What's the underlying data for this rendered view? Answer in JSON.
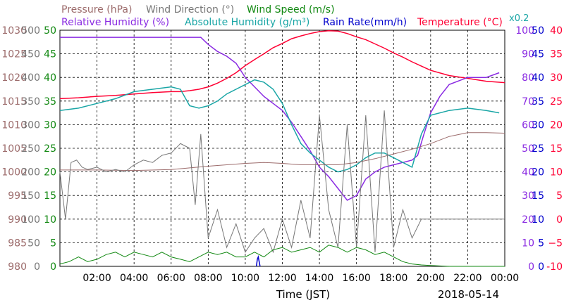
{
  "chart_data": {
    "type": "line",
    "date": "2018-05-14",
    "xlabel": "Time (JST)",
    "x_ticks": [
      "02:00",
      "04:00",
      "06:00",
      "08:00",
      "10:00",
      "12:00",
      "14:00",
      "16:00",
      "18:00",
      "20:00",
      "22:00",
      "00:00"
    ],
    "xlim_hours": [
      0,
      24
    ],
    "grid": true,
    "legend": [
      {
        "label": "Pressure (hPa)",
        "color": "#9c6b6b"
      },
      {
        "label": "Wind Direction (°)",
        "color": "#777777"
      },
      {
        "label": "Wind Speed (m/s)",
        "color": "#118811"
      },
      {
        "label": "Relative Humidity (%)",
        "color": "#8a2be2"
      },
      {
        "label": "Absolute Humidity (g/m³)",
        "color": "#1aa6a6"
      },
      {
        "label": "Rain Rate(mm/h)",
        "color": "#0000cc"
      },
      {
        "label": "Temperature (°C)",
        "color": "#ff0033"
      },
      {
        "label": "x0.2",
        "color": "#1aa6a6"
      }
    ],
    "axes": {
      "pressure": {
        "color": "#9c6b6b",
        "ticks": [
          980,
          985,
          990,
          995,
          1000,
          1005,
          1010,
          1015,
          1020,
          1025,
          1030
        ]
      },
      "wind_direction": {
        "color": "#777777",
        "ticks": [
          0,
          50,
          100,
          150,
          200,
          250,
          300,
          350,
          400,
          450,
          500
        ]
      },
      "wind_speed": {
        "color": "#118811",
        "ticks": [
          0,
          5,
          10,
          15,
          20,
          25,
          30,
          35,
          40,
          45,
          50
        ]
      },
      "relative_humidity": {
        "color": "#8a2be2",
        "ticks": [
          0,
          10,
          20,
          30,
          40,
          50,
          60,
          70,
          80,
          90,
          100
        ]
      },
      "rain_rate": {
        "color": "#0000cc",
        "ticks": [
          0,
          5,
          10,
          15,
          20,
          25,
          30,
          35,
          40,
          45,
          50
        ]
      },
      "temperature": {
        "color": "#ff0033",
        "ticks": [
          "-10",
          "−5",
          "0",
          "5",
          "10",
          "15",
          "20",
          "25",
          "30",
          "35",
          "40"
        ]
      }
    },
    "series": [
      {
        "name": "Temperature",
        "axis": "temperature",
        "ylim": [
          -10,
          40
        ],
        "color": "#ff0033",
        "x": [
          0,
          1,
          2,
          3,
          4,
          5,
          6,
          6.5,
          7,
          7.5,
          8,
          8.5,
          9,
          9.5,
          10,
          10.5,
          11,
          11.5,
          12,
          12.5,
          13,
          13.5,
          14,
          14.5,
          15,
          15.5,
          16,
          16.5,
          17,
          17.5,
          18,
          18.5,
          19,
          19.5,
          20,
          21,
          22,
          23,
          24
        ],
        "y": [
          25.5,
          25.7,
          26,
          26.2,
          26.5,
          26.8,
          27,
          27,
          27.2,
          27.5,
          28,
          28.8,
          29.8,
          31,
          32.5,
          33.8,
          35,
          36.3,
          37.2,
          38.2,
          38.8,
          39.3,
          39.7,
          39.9,
          39.8,
          39.3,
          38.6,
          38,
          37.1,
          36.2,
          35.2,
          34.3,
          33.3,
          32.4,
          31.5,
          30.4,
          29.8,
          29.2,
          28.9
        ]
      },
      {
        "name": "Relative Humidity",
        "axis": "relative_humidity",
        "ylim": [
          0,
          100
        ],
        "color": "#8a2be2",
        "x": [
          0,
          1,
          2,
          3,
          4,
          5,
          6,
          7,
          7.6,
          8,
          8.5,
          9,
          9.5,
          10,
          10.5,
          11,
          11.5,
          12,
          12.5,
          13,
          13.5,
          14,
          14.5,
          15,
          15.5,
          16,
          16.5,
          17,
          17.5,
          18,
          18.5,
          19,
          19.3,
          19.6,
          20,
          20.5,
          21,
          22,
          23,
          23.7
        ],
        "y": [
          97,
          97,
          97,
          97,
          97,
          97,
          97,
          97,
          97,
          94,
          91,
          89,
          86,
          80,
          76,
          72,
          69,
          66,
          61,
          55,
          49,
          42,
          38,
          33,
          28,
          30,
          37,
          40,
          42,
          43,
          44,
          45,
          47,
          55,
          65,
          72,
          77,
          80,
          80,
          82
        ]
      },
      {
        "name": "Absolute Humidity",
        "axis": "wind_speed",
        "ylim": [
          0,
          50
        ],
        "color": "#1aa6a6",
        "x": [
          0,
          1,
          2,
          3,
          4,
          5,
          6,
          6.5,
          7,
          7.5,
          8,
          8.5,
          9,
          9.5,
          10,
          10.5,
          11,
          11.5,
          12,
          12.5,
          13,
          13.5,
          14,
          14.5,
          15,
          15.5,
          16,
          16.5,
          17,
          17.5,
          18,
          18.5,
          19,
          19.5,
          20,
          21,
          22,
          23,
          23.7
        ],
        "y": [
          33,
          33.5,
          34.5,
          35.5,
          37,
          37.5,
          38,
          37.5,
          34,
          33.5,
          34,
          35,
          36.5,
          37.5,
          38.5,
          39.5,
          39,
          37.5,
          34.5,
          30,
          26,
          24,
          22.5,
          21,
          20,
          20.5,
          21.5,
          23,
          24,
          24,
          23,
          22,
          21,
          28,
          32,
          33,
          33.5,
          33,
          32.5
        ]
      },
      {
        "name": "Pressure",
        "axis": "pressure",
        "ylim": [
          980,
          1030
        ],
        "color": "#9c6b6b",
        "x": [
          0,
          2,
          4,
          6,
          8,
          10,
          11,
          12,
          13,
          14,
          15,
          16,
          17,
          18,
          19,
          20,
          21,
          22,
          23,
          24
        ],
        "y": [
          1000.4,
          1000.4,
          1000.3,
          1000.5,
          1001.2,
          1001.8,
          1002,
          1001.8,
          1001.5,
          1001.5,
          1001.5,
          1002,
          1002.8,
          1003.8,
          1004.8,
          1006,
          1007.5,
          1008.3,
          1008.3,
          1008.2
        ]
      },
      {
        "name": "Wind Direction",
        "axis": "wind_direction",
        "ylim": [
          0,
          500
        ],
        "color": "#777777",
        "x": [
          0,
          0.3,
          0.6,
          0.9,
          1.2,
          1.5,
          2,
          2.5,
          3,
          3.5,
          4,
          4.5,
          5,
          5.5,
          6,
          6.5,
          7,
          7.3,
          7.6,
          8,
          8.5,
          9,
          9.5,
          10,
          10.5,
          11,
          11.5,
          12,
          12.5,
          13,
          13.5,
          14,
          14.5,
          15,
          15.5,
          16,
          16.5,
          17,
          17.5,
          18,
          18.5,
          19,
          19.5,
          20,
          21,
          22,
          23,
          24
        ],
        "y": [
          200,
          100,
          220,
          225,
          210,
          205,
          210,
          200,
          205,
          200,
          215,
          225,
          220,
          235,
          240,
          260,
          250,
          130,
          280,
          60,
          120,
          40,
          90,
          30,
          60,
          80,
          30,
          100,
          40,
          140,
          60,
          320,
          120,
          40,
          300,
          40,
          320,
          30,
          330,
          40,
          120,
          60,
          100,
          100,
          100,
          100,
          100,
          100
        ]
      },
      {
        "name": "Wind Speed",
        "axis": "wind_speed",
        "ylim": [
          0,
          50
        ],
        "color": "#118811",
        "x": [
          0,
          0.5,
          1,
          1.5,
          2,
          2.5,
          3,
          3.5,
          4,
          4.5,
          5,
          5.5,
          6,
          6.5,
          7,
          7.5,
          8,
          8.5,
          9,
          9.5,
          10,
          10.5,
          11,
          11.5,
          12,
          12.5,
          13,
          13.5,
          14,
          14.5,
          15,
          15.5,
          16,
          16.5,
          17,
          17.5,
          18,
          18.5,
          19,
          19.5,
          20,
          21,
          22,
          23,
          24
        ],
        "y": [
          0.5,
          1,
          2,
          1,
          1.5,
          2.5,
          3,
          2,
          3,
          2.5,
          2,
          3,
          2,
          1.5,
          1,
          2,
          3,
          2.5,
          3,
          2,
          2,
          3,
          2,
          3.5,
          4,
          3,
          3.5,
          4,
          3,
          4.5,
          4,
          3,
          4,
          3.5,
          2.5,
          3,
          2,
          1,
          0.5,
          0.3,
          0.2,
          0,
          0,
          0,
          0
        ]
      },
      {
        "name": "Rain Rate",
        "axis": "rain_rate",
        "ylim": [
          0,
          50
        ],
        "color": "#0000cc",
        "x": [
          10.6,
          10.65,
          10.7,
          10.75,
          10.8
        ],
        "y": [
          0,
          1.5,
          2,
          1,
          0
        ]
      }
    ]
  }
}
